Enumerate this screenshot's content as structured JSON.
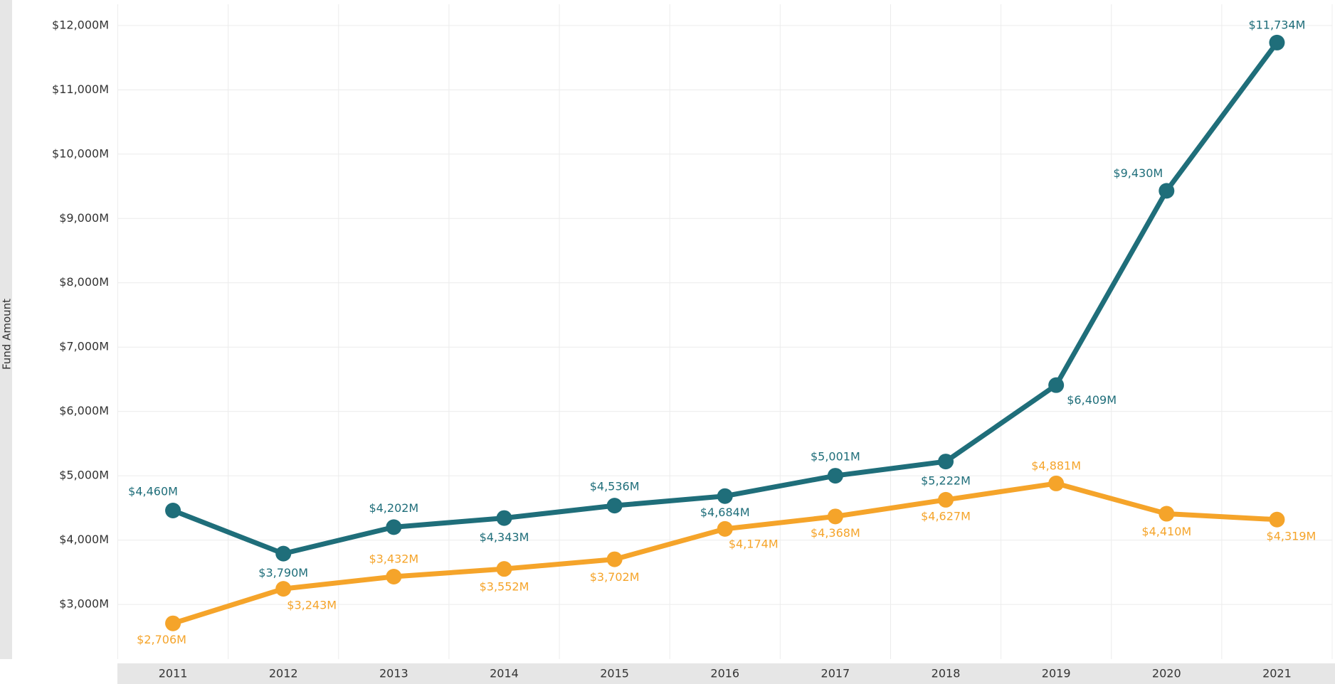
{
  "chart_data": {
    "type": "line",
    "y_label": "Fund Amount",
    "categories": [
      "2011",
      "2012",
      "2013",
      "2014",
      "2015",
      "2016",
      "2017",
      "2018",
      "2019",
      "2020",
      "2021"
    ],
    "series": [
      {
        "color": "#1f6e7a",
        "values": [
          4460,
          3790,
          4202,
          4343,
          4536,
          4684,
          5001,
          5222,
          6409,
          9430,
          11734
        ],
        "value_labels": [
          "$4,460M",
          "$3,790M",
          "$4,202M",
          "$4,343M",
          "$4,536M",
          "$4,684M",
          "$5,001M",
          "$5,222M",
          "$6,409M",
          "$9,430M",
          "$11,734M"
        ]
      },
      {
        "color": "#f5a42a",
        "values": [
          2706,
          3243,
          3432,
          3552,
          3702,
          4174,
          4368,
          4627,
          4881,
          4410,
          4319
        ],
        "value_labels": [
          "$2,706M",
          "$3,243M",
          "$3,432M",
          "$3,552M",
          "$3,702M",
          "$4,174M",
          "$4,368M",
          "$4,627M",
          "$4,881M",
          "$4,410M",
          "$4,319M"
        ]
      }
    ],
    "ylim": [
      2150,
      12330
    ],
    "yticks": [
      {
        "value": 3000,
        "label": "$3,000M"
      },
      {
        "value": 4000,
        "label": "$4,000M"
      },
      {
        "value": 5000,
        "label": "$5,000M"
      },
      {
        "value": 6000,
        "label": "$6,000M"
      },
      {
        "value": 7000,
        "label": "$7,000M"
      },
      {
        "value": 8000,
        "label": "$8,000M"
      },
      {
        "value": 9000,
        "label": "$9,000M"
      },
      {
        "value": 10000,
        "label": "$10,000M"
      },
      {
        "value": 11000,
        "label": "$11,000M"
      },
      {
        "value": 12000,
        "label": "$12,000M"
      }
    ],
    "grid": true
  }
}
